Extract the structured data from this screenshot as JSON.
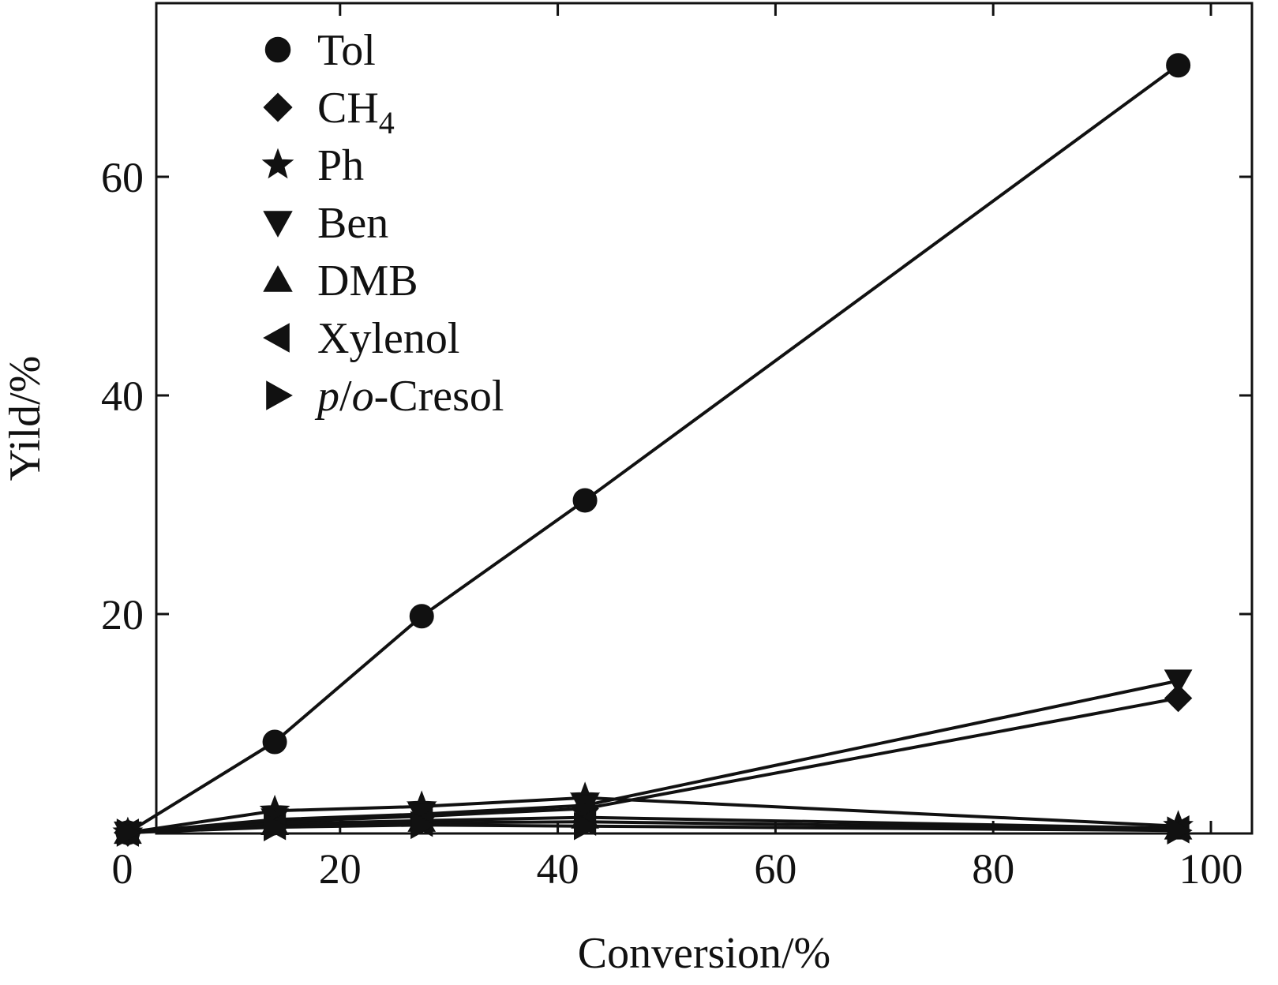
{
  "chart_data": {
    "type": "line",
    "xlabel": "Conversion/%",
    "ylabel": "Yild/%",
    "xlim": [
      0,
      100
    ],
    "ylim": [
      0,
      75
    ],
    "xticks": [
      "0",
      "20",
      "40",
      "60",
      "80",
      "100"
    ],
    "xtick_values": [
      0,
      20,
      40,
      60,
      80,
      100
    ],
    "yticks": [
      "20",
      "40",
      "60"
    ],
    "ytick_values": [
      20,
      40,
      60
    ],
    "grid": false,
    "legend_position": "top-left",
    "x": [
      0.5,
      14,
      27.5,
      42.5,
      97
    ],
    "series": [
      {
        "name": "Tol",
        "marker": "circle",
        "legend_parts": [
          {
            "text": "Tol"
          }
        ],
        "values": [
          0,
          8.3,
          19.8,
          30.4,
          70.2
        ]
      },
      {
        "name": "CH4",
        "marker": "diamond",
        "legend_parts": [
          {
            "text": "CH"
          },
          {
            "text": "4",
            "sub": true
          }
        ],
        "values": [
          0,
          1.0,
          1.5,
          2.2,
          12.3
        ]
      },
      {
        "name": "Ph",
        "marker": "star",
        "legend_parts": [
          {
            "text": "Ph"
          }
        ],
        "values": [
          0,
          2.0,
          2.4,
          3.2,
          0.6
        ]
      },
      {
        "name": "Ben",
        "marker": "triangle-down",
        "legend_parts": [
          {
            "text": "Ben"
          }
        ],
        "values": [
          0,
          1.2,
          1.7,
          2.5,
          13.9
        ]
      },
      {
        "name": "DMB",
        "marker": "triangle-up",
        "legend_parts": [
          {
            "text": "DMB"
          }
        ],
        "values": [
          0,
          0.8,
          1.1,
          1.4,
          0.4
        ]
      },
      {
        "name": "Xylenol",
        "marker": "triangle-left",
        "legend_parts": [
          {
            "text": "Xylenol"
          }
        ],
        "values": [
          0,
          0.6,
          0.9,
          1.0,
          0.3
        ]
      },
      {
        "name": "p/o-Cresol",
        "marker": "triangle-right",
        "legend_parts": [
          {
            "text": "p",
            "italic": true
          },
          {
            "text": "/"
          },
          {
            "text": "o",
            "italic": true
          },
          {
            "text": "-Cresol"
          }
        ],
        "values": [
          0,
          0.5,
          0.7,
          0.6,
          0.2
        ]
      }
    ]
  }
}
